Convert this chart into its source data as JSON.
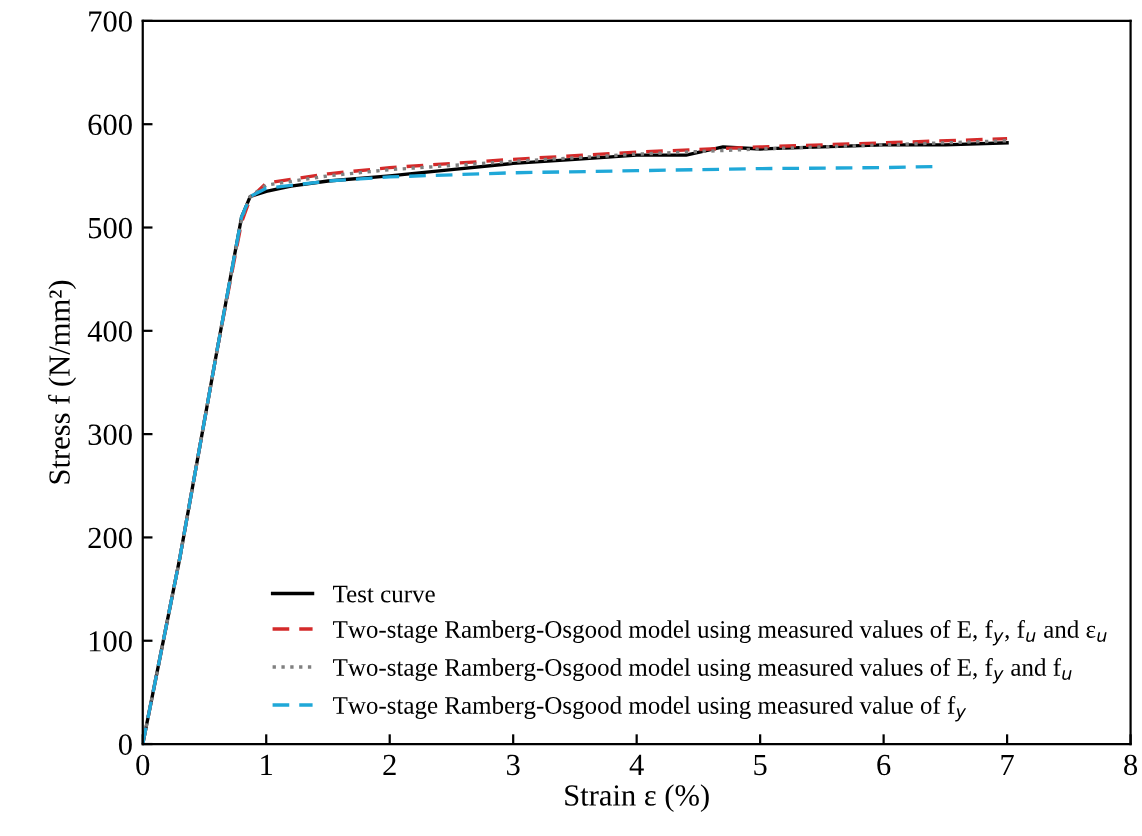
{
  "chart_data": {
    "type": "line",
    "xlabel": "Strain ε (%)",
    "ylabel": "Stress f (N/mm²)",
    "xlim": [
      0,
      8
    ],
    "ylim": [
      0,
      700
    ],
    "xticks": [
      0,
      1,
      2,
      3,
      4,
      5,
      6,
      7,
      8
    ],
    "yticks": [
      0,
      100,
      200,
      300,
      400,
      500,
      600,
      700
    ],
    "grid": false,
    "legend": "bottom right",
    "series": [
      {
        "name": "Test curve",
        "color": "#000000",
        "line_style": "solid",
        "x": [
          0,
          0.3,
          0.6,
          0.8,
          0.87,
          1.0,
          1.2,
          1.5,
          2.0,
          2.5,
          3.0,
          3.5,
          4.0,
          4.4,
          4.7,
          5.0,
          5.5,
          6.0,
          6.5,
          7.0
        ],
        "values": [
          0,
          180,
          380,
          510,
          530,
          535,
          540,
          545,
          550,
          556,
          562,
          566,
          570,
          570,
          578,
          576,
          578,
          580,
          580,
          582
        ]
      },
      {
        "name": "Two-stage Ramberg-Osgood model using measured values of E, f$_{y}$, f$_{u}$ and ε$_{u}$",
        "color": "#d42a2a",
        "line_style": "dashed",
        "x": [
          0,
          0.3,
          0.6,
          0.8,
          0.87,
          1.0,
          1.5,
          2.0,
          3.0,
          4.0,
          5.0,
          6.0,
          7.0
        ],
        "values": [
          0,
          180,
          380,
          505,
          528,
          543,
          552,
          558,
          566,
          573,
          578,
          582,
          586
        ]
      },
      {
        "name": "Two-stage Ramberg-Osgood model using measured values of E, f$_{y}$ and f$_{u}$",
        "color": "#808080",
        "line_style": "dotted",
        "x": [
          0,
          0.3,
          0.6,
          0.8,
          0.87,
          1.0,
          1.5,
          2.0,
          3.0,
          4.0,
          5.0,
          6.0,
          7.0
        ],
        "values": [
          0,
          180,
          380,
          508,
          530,
          541,
          550,
          556,
          564,
          571,
          576,
          580,
          584
        ]
      },
      {
        "name": "Two-stage Ramberg-Osgood model using measured value of f$_{y}$",
        "color": "#1fa8d8",
        "line_style": "dashed",
        "x": [
          0,
          0.3,
          0.6,
          0.8,
          0.87,
          1.0,
          1.5,
          2.0,
          3.0,
          4.0,
          5.0,
          6.0,
          6.4
        ],
        "values": [
          0,
          180,
          380,
          510,
          530,
          538,
          545,
          549,
          553,
          555,
          557,
          558,
          559
        ]
      }
    ]
  }
}
